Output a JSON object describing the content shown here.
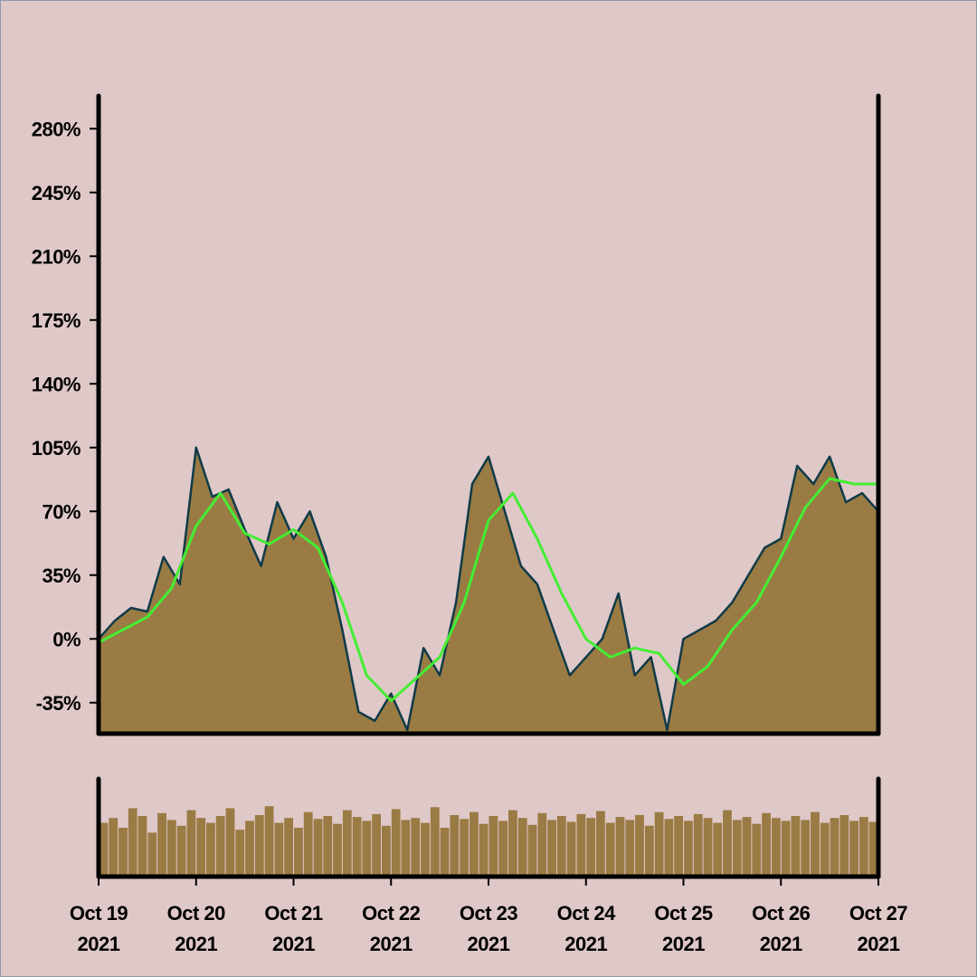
{
  "chart_data": [
    {
      "type": "area",
      "title": "",
      "xlabel": "",
      "ylabel": "",
      "x_tick_labels": [
        [
          "Oct 19",
          "2021"
        ],
        [
          "Oct 20",
          "2021"
        ],
        [
          "Oct 21",
          "2021"
        ],
        [
          "Oct 22",
          "2021"
        ],
        [
          "Oct 23",
          "2021"
        ],
        [
          "Oct 24",
          "2021"
        ],
        [
          "Oct 25",
          "2021"
        ],
        [
          "Oct 26",
          "2021"
        ],
        [
          "Oct 27",
          "2021"
        ]
      ],
      "y_ticks": [
        -35,
        0,
        35,
        70,
        105,
        140,
        175,
        210,
        245,
        280
      ],
      "y_tick_labels": [
        "-35%",
        "0%",
        "35%",
        "70%",
        "105%",
        "140%",
        "175%",
        "210%",
        "245%",
        "280%"
      ],
      "xlim": [
        "2021-10-19",
        "2021-10-27"
      ],
      "ylim": [
        -52,
        298
      ],
      "grid": false,
      "colors": {
        "background": "#dfc8c8",
        "fill": "#9a7b44",
        "price_line": "#0f3b47",
        "moving_average": "#44ee33",
        "axis": "#000000"
      },
      "series": [
        {
          "role": "price",
          "x": [
            "2021-10-19 00:00",
            "2021-10-19 04:00",
            "2021-10-19 08:00",
            "2021-10-19 12:00",
            "2021-10-19 16:00",
            "2021-10-19 20:00",
            "2021-10-20 00:00",
            "2021-10-20 04:00",
            "2021-10-20 08:00",
            "2021-10-20 12:00",
            "2021-10-20 16:00",
            "2021-10-20 20:00",
            "2021-10-21 00:00",
            "2021-10-21 04:00",
            "2021-10-21 08:00",
            "2021-10-21 12:00",
            "2021-10-21 16:00",
            "2021-10-21 20:00",
            "2021-10-22 00:00",
            "2021-10-22 04:00",
            "2021-10-22 08:00",
            "2021-10-22 12:00",
            "2021-10-22 16:00",
            "2021-10-22 20:00",
            "2021-10-23 00:00",
            "2021-10-23 04:00",
            "2021-10-23 08:00",
            "2021-10-23 12:00",
            "2021-10-23 16:00",
            "2021-10-23 20:00",
            "2021-10-24 00:00",
            "2021-10-24 04:00",
            "2021-10-24 08:00",
            "2021-10-24 12:00",
            "2021-10-24 16:00",
            "2021-10-24 20:00",
            "2021-10-25 00:00",
            "2021-10-25 04:00",
            "2021-10-25 08:00",
            "2021-10-25 12:00",
            "2021-10-25 16:00",
            "2021-10-25 20:00",
            "2021-10-26 00:00",
            "2021-10-26 04:00",
            "2021-10-26 08:00",
            "2021-10-26 12:00",
            "2021-10-26 16:00",
            "2021-10-26 20:00",
            "2021-10-27 00:00"
          ],
          "values": [
            0,
            10,
            17,
            15,
            45,
            30,
            105,
            78,
            82,
            60,
            40,
            75,
            55,
            70,
            45,
            5,
            -40,
            -45,
            -30,
            -50,
            -5,
            -20,
            20,
            85,
            100,
            70,
            40,
            30,
            5,
            -20,
            -10,
            0,
            25,
            -20,
            -10,
            -50,
            0,
            5,
            10,
            20,
            35,
            50,
            55,
            95,
            85,
            100,
            75,
            80,
            70
          ]
        },
        {
          "role": "moving_average",
          "x": [
            "2021-10-19 00:00",
            "2021-10-19 06:00",
            "2021-10-19 12:00",
            "2021-10-19 18:00",
            "2021-10-20 00:00",
            "2021-10-20 06:00",
            "2021-10-20 12:00",
            "2021-10-20 18:00",
            "2021-10-21 00:00",
            "2021-10-21 06:00",
            "2021-10-21 12:00",
            "2021-10-21 18:00",
            "2021-10-22 00:00",
            "2021-10-22 06:00",
            "2021-10-22 12:00",
            "2021-10-22 18:00",
            "2021-10-23 00:00",
            "2021-10-23 06:00",
            "2021-10-23 12:00",
            "2021-10-23 18:00",
            "2021-10-24 00:00",
            "2021-10-24 06:00",
            "2021-10-24 12:00",
            "2021-10-24 18:00",
            "2021-10-25 00:00",
            "2021-10-25 06:00",
            "2021-10-25 12:00",
            "2021-10-25 18:00",
            "2021-10-26 00:00",
            "2021-10-26 06:00",
            "2021-10-26 12:00",
            "2021-10-26 18:00",
            "2021-10-27 00:00"
          ],
          "values": [
            -2,
            5,
            12,
            28,
            62,
            80,
            58,
            52,
            60,
            50,
            20,
            -20,
            -34,
            -22,
            -10,
            20,
            65,
            80,
            55,
            25,
            0,
            -10,
            -5,
            -8,
            -25,
            -15,
            5,
            20,
            45,
            72,
            88,
            85,
            85
          ]
        }
      ]
    },
    {
      "type": "bar",
      "title": "",
      "xlabel": "",
      "ylabel": "",
      "y_tick_labels": [],
      "xlim": [
        "2021-10-19",
        "2021-10-27"
      ],
      "ylim": [
        0,
        1
      ],
      "grid": false,
      "series": [
        {
          "role": "volume",
          "values": [
            0.55,
            0.6,
            0.5,
            0.7,
            0.62,
            0.45,
            0.65,
            0.58,
            0.52,
            0.68,
            0.6,
            0.55,
            0.62,
            0.7,
            0.48,
            0.57,
            0.63,
            0.72,
            0.55,
            0.6,
            0.5,
            0.66,
            0.59,
            0.62,
            0.54,
            0.68,
            0.61,
            0.57,
            0.64,
            0.52,
            0.69,
            0.58,
            0.6,
            0.55,
            0.71,
            0.5,
            0.63,
            0.59,
            0.66,
            0.54,
            0.62,
            0.57,
            0.68,
            0.6,
            0.53,
            0.65,
            0.58,
            0.62,
            0.56,
            0.64,
            0.6,
            0.67,
            0.55,
            0.61,
            0.58,
            0.63,
            0.52,
            0.66,
            0.59,
            0.62,
            0.57,
            0.64,
            0.6,
            0.55,
            0.68,
            0.58,
            0.61,
            0.54,
            0.65,
            0.6,
            0.57,
            0.62,
            0.58,
            0.66,
            0.55,
            0.6,
            0.63,
            0.57,
            0.61,
            0.56
          ]
        }
      ]
    }
  ]
}
